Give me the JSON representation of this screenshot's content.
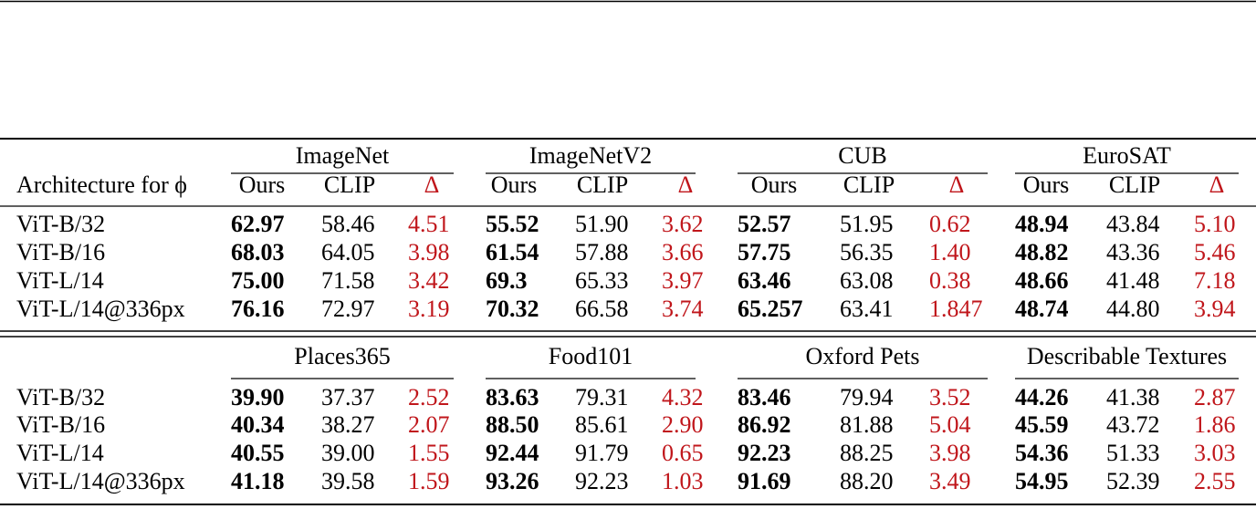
{
  "table": {
    "label_header": "Architecture for ϕ",
    "sections": [
      {
        "groups": [
          "ImageNet",
          "ImageNetV2",
          "CUB",
          "EuroSAT"
        ],
        "subheaders": [
          [
            "Ours",
            "CLIP",
            "Δ"
          ],
          [
            "Ours",
            "CLIP",
            "Δ"
          ],
          [
            "Ours",
            "CLIP",
            "Δ"
          ],
          [
            "Ours",
            "CLIP",
            "Δ"
          ]
        ],
        "rows": [
          {
            "label": "ViT-B/32",
            "cells": [
              [
                "62.97",
                "58.46",
                "4.51"
              ],
              [
                "55.52",
                "51.90",
                "3.62"
              ],
              [
                "52.57",
                "51.95",
                "0.62"
              ],
              [
                "48.94",
                "43.84",
                "5.10"
              ]
            ]
          },
          {
            "label": "ViT-B/16",
            "cells": [
              [
                "68.03",
                "64.05",
                "3.98"
              ],
              [
                "61.54",
                "57.88",
                "3.66"
              ],
              [
                "57.75",
                "56.35",
                "1.40"
              ],
              [
                "48.82",
                "43.36",
                "5.46"
              ]
            ]
          },
          {
            "label": "ViT-L/14",
            "cells": [
              [
                "75.00",
                "71.58",
                "3.42"
              ],
              [
                "69.3",
                "65.33",
                "3.97"
              ],
              [
                "63.46",
                "63.08",
                "0.38"
              ],
              [
                "48.66",
                "41.48",
                "7.18"
              ]
            ]
          },
          {
            "label": "ViT-L/14@336px",
            "cells": [
              [
                "76.16",
                "72.97",
                "3.19"
              ],
              [
                "70.32",
                "66.58",
                "3.74"
              ],
              [
                "65.257",
                "63.41",
                "1.847"
              ],
              [
                "48.74",
                "44.80",
                "3.94"
              ]
            ]
          }
        ]
      },
      {
        "groups": [
          "Places365",
          "Food101",
          "Oxford Pets",
          "Describable Textures"
        ],
        "rows": [
          {
            "label": "ViT-B/32",
            "cells": [
              [
                "39.90",
                "37.37",
                "2.52"
              ],
              [
                "83.63",
                "79.31",
                "4.32"
              ],
              [
                "83.46",
                "79.94",
                "3.52"
              ],
              [
                "44.26",
                "41.38",
                "2.87"
              ]
            ]
          },
          {
            "label": "ViT-B/16",
            "cells": [
              [
                "40.34",
                "38.27",
                "2.07"
              ],
              [
                "88.50",
                "85.61",
                "2.90"
              ],
              [
                "86.92",
                "81.88",
                "5.04"
              ],
              [
                "45.59",
                "43.72",
                "1.86"
              ]
            ]
          },
          {
            "label": "ViT-L/14",
            "cells": [
              [
                "40.55",
                "39.00",
                "1.55"
              ],
              [
                "92.44",
                "91.79",
                "0.65"
              ],
              [
                "92.23",
                "88.25",
                "3.98"
              ],
              [
                "54.36",
                "51.33",
                "3.03"
              ]
            ]
          },
          {
            "label": "ViT-L/14@336px",
            "cells": [
              [
                "41.18",
                "39.58",
                "1.59"
              ],
              [
                "93.26",
                "92.23",
                "1.03"
              ],
              [
                "91.69",
                "88.20",
                "3.49"
              ],
              [
                "54.95",
                "52.39",
                "2.55"
              ]
            ]
          }
        ]
      }
    ]
  }
}
